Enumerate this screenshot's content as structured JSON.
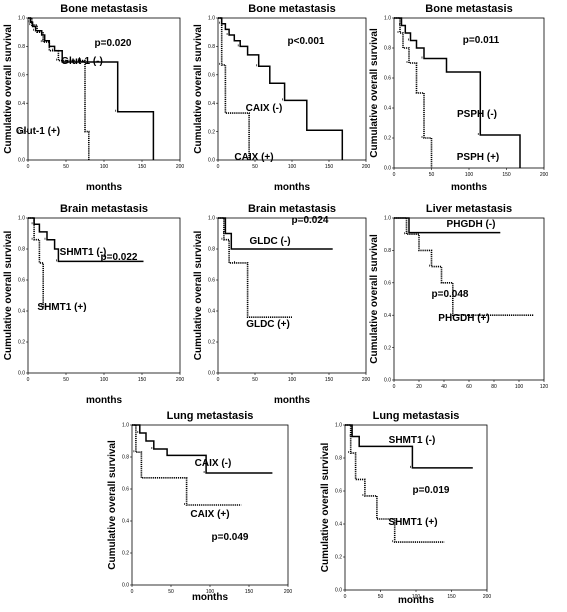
{
  "figure": {
    "colors": {
      "line": "#000000",
      "green_tint": "#3a6b3a"
    }
  },
  "chart_data": [
    {
      "type": "line",
      "title": "Bone metastasis",
      "xlabel": "months",
      "ylabel": "Cumulative overall survival",
      "xlim": [
        0,
        200
      ],
      "ylim": [
        0,
        1
      ],
      "x_ticks": [
        "0",
        "50",
        "100",
        "150",
        "200"
      ],
      "y_ticks": [
        "0.0",
        "0.2",
        "0.4",
        "0.6",
        "0.8",
        "1.0"
      ],
      "series": [
        {
          "name": "Glut-1 (-)",
          "style": "solid",
          "x": [
            0,
            3,
            6,
            10,
            18,
            22,
            28,
            35,
            45,
            118,
            165
          ],
          "y": [
            1.0,
            0.97,
            0.94,
            0.91,
            0.88,
            0.84,
            0.8,
            0.77,
            0.69,
            0.34,
            0.0
          ]
        },
        {
          "name": "Glut-1 (+)",
          "style": "dotted",
          "x": [
            0,
            5,
            12,
            20,
            28,
            40,
            75,
            80
          ],
          "y": [
            1.0,
            0.95,
            0.9,
            0.83,
            0.77,
            0.7,
            0.2,
            0.0
          ]
        }
      ],
      "annotations": [
        {
          "text": "p=0.020"
        },
        {
          "text": "Glut-1 (-)"
        },
        {
          "text": "Glut-1 (+)"
        }
      ]
    },
    {
      "type": "line",
      "title": "Bone metastasis",
      "xlabel": "months",
      "ylabel": "Cumulative overall survival",
      "xlim": [
        0,
        200
      ],
      "ylim": [
        0,
        1
      ],
      "x_ticks": [
        "0",
        "50",
        "100",
        "150",
        "200"
      ],
      "y_ticks": [
        "0.0",
        "0.2",
        "0.4",
        "0.6",
        "0.8",
        "1.0"
      ],
      "series": [
        {
          "name": "CAIX (-)",
          "style": "solid",
          "x": [
            0,
            5,
            10,
            15,
            22,
            30,
            40,
            55,
            70,
            90,
            120,
            168
          ],
          "y": [
            1.0,
            0.96,
            0.92,
            0.88,
            0.84,
            0.8,
            0.74,
            0.66,
            0.54,
            0.42,
            0.21,
            0.0
          ]
        },
        {
          "name": "CAIX (+)",
          "style": "dotted",
          "x": [
            0,
            5,
            10,
            42
          ],
          "y": [
            1.0,
            0.67,
            0.33,
            0.0
          ]
        }
      ],
      "annotations": [
        {
          "text": "p<0.001"
        },
        {
          "text": "CAIX (-)"
        },
        {
          "text": "CAIX (+)"
        }
      ]
    },
    {
      "type": "line",
      "title": "Bone metastasis",
      "xlabel": "months",
      "ylabel": "Cumulative overall survival",
      "xlim": [
        0,
        200
      ],
      "ylim": [
        0,
        1
      ],
      "x_ticks": [
        "0",
        "50",
        "100",
        "150",
        "200"
      ],
      "y_ticks": [
        "0.0",
        "0.2",
        "0.4",
        "0.6",
        "0.8",
        "1.0"
      ],
      "series": [
        {
          "name": "PSPH (-)",
          "style": "solid",
          "x": [
            0,
            10,
            15,
            22,
            30,
            40,
            70,
            115,
            168
          ],
          "y": [
            1.0,
            0.95,
            0.9,
            0.85,
            0.8,
            0.73,
            0.64,
            0.22,
            0.0
          ]
        },
        {
          "name": "PSPH (+)",
          "style": "dotted",
          "x": [
            0,
            8,
            12,
            20,
            30,
            40,
            50
          ],
          "y": [
            1.0,
            0.9,
            0.8,
            0.7,
            0.5,
            0.2,
            0.0
          ]
        }
      ],
      "annotations": [
        {
          "text": "p=0.011"
        },
        {
          "text": "PSPH (-)"
        },
        {
          "text": "PSPH (+)"
        }
      ]
    },
    {
      "type": "line",
      "title": "Brain metastasis",
      "xlabel": "months",
      "ylabel": "Cumulative overall survival",
      "xlim": [
        0,
        200
      ],
      "ylim": [
        0,
        1
      ],
      "x_ticks": [
        "0",
        "50",
        "100",
        "150",
        "200"
      ],
      "y_ticks": [
        "0.0",
        "0.2",
        "0.4",
        "0.6",
        "0.8",
        "1.0"
      ],
      "series": [
        {
          "name": "SHMT1 (-)",
          "style": "solid",
          "x": [
            0,
            8,
            15,
            25,
            35,
            40,
            152
          ],
          "y": [
            1.0,
            0.96,
            0.91,
            0.86,
            0.8,
            0.72,
            0.72
          ]
        },
        {
          "name": "SHMT1 (+)",
          "style": "dotted",
          "x": [
            0,
            8,
            15,
            20,
            25
          ],
          "y": [
            1.0,
            0.86,
            0.71,
            0.43,
            0.43
          ]
        }
      ],
      "annotations": [
        {
          "text": "p=0.022"
        },
        {
          "text": "SHMT1 (-)"
        },
        {
          "text": "SHMT1 (+)"
        }
      ]
    },
    {
      "type": "line",
      "title": "Brain metastasis",
      "xlabel": "months",
      "ylabel": "Cumulative overall survival",
      "xlim": [
        0,
        200
      ],
      "ylim": [
        0,
        1
      ],
      "x_ticks": [
        "0",
        "50",
        "100",
        "150",
        "200"
      ],
      "y_ticks": [
        "0.0",
        "0.2",
        "0.4",
        "0.6",
        "0.8",
        "1.0"
      ],
      "series": [
        {
          "name": "GLDC (-)",
          "style": "solid",
          "x": [
            0,
            10,
            18,
            155
          ],
          "y": [
            1.0,
            0.9,
            0.8,
            0.8
          ]
        },
        {
          "name": "GLDC (+)",
          "style": "dotted",
          "x": [
            0,
            8,
            15,
            25,
            40,
            100
          ],
          "y": [
            1.0,
            0.86,
            0.71,
            0.71,
            0.36,
            0.36
          ]
        }
      ],
      "annotations": [
        {
          "text": "p=0.024"
        },
        {
          "text": "GLDC (-)"
        },
        {
          "text": "GLDC (+)"
        }
      ]
    },
    {
      "type": "line",
      "title": "Liver metastasis",
      "xlabel": "",
      "ylabel": "Cumulative overall survival",
      "xlim": [
        0,
        120
      ],
      "ylim": [
        0,
        1
      ],
      "x_ticks": [
        "0",
        "20",
        "40",
        "60",
        "80",
        "100",
        "120"
      ],
      "y_ticks": [
        "0.0",
        "0.2",
        "0.4",
        "0.6",
        "0.8",
        "1.0"
      ],
      "series": [
        {
          "name": "PHGDH (-)",
          "style": "solid",
          "x": [
            0,
            12,
            85
          ],
          "y": [
            1.0,
            0.91,
            0.91
          ]
        },
        {
          "name": "PHGDH (+)",
          "style": "dotted",
          "x": [
            0,
            10,
            20,
            30,
            38,
            47,
            112
          ],
          "y": [
            1.0,
            0.9,
            0.8,
            0.7,
            0.6,
            0.4,
            0.4
          ]
        }
      ],
      "annotations": [
        {
          "text": "p=0.048"
        },
        {
          "text": "PHGDH (-)"
        },
        {
          "text": "PHGDH (+)"
        }
      ]
    },
    {
      "type": "line",
      "title": "Lung metastasis",
      "xlabel": "months",
      "ylabel": "Cumulative overall survival",
      "xlim": [
        0,
        200
      ],
      "ylim": [
        0,
        1
      ],
      "x_ticks": [
        "0",
        "50",
        "100",
        "150",
        "200"
      ],
      "y_ticks": [
        "0.0",
        "0.2",
        "0.4",
        "0.6",
        "0.8",
        "1.0"
      ],
      "series": [
        {
          "name": "CAIX (-)",
          "style": "solid",
          "x": [
            0,
            10,
            18,
            28,
            45,
            95,
            180
          ],
          "y": [
            1.0,
            0.95,
            0.9,
            0.85,
            0.81,
            0.7,
            0.7
          ]
        },
        {
          "name": "CAIX (+)",
          "style": "dotted",
          "x": [
            0,
            5,
            12,
            70,
            140
          ],
          "y": [
            1.0,
            0.83,
            0.67,
            0.5,
            0.5
          ]
        }
      ],
      "annotations": [
        {
          "text": "p=0.049"
        },
        {
          "text": "CAIX (-)"
        },
        {
          "text": "CAIX (+)"
        }
      ]
    },
    {
      "type": "line",
      "title": "Lung metastasis",
      "xlabel": "months",
      "ylabel": "Cumulative overall survival",
      "xlim": [
        0,
        200
      ],
      "ylim": [
        0,
        1
      ],
      "x_ticks": [
        "0",
        "50",
        "100",
        "150",
        "200"
      ],
      "y_ticks": [
        "0.0",
        "0.2",
        "0.4",
        "0.6",
        "0.8",
        "1.0"
      ],
      "series": [
        {
          "name": "SHMT1 (-)",
          "style": "solid",
          "x": [
            0,
            10,
            20,
            95,
            180
          ],
          "y": [
            1.0,
            0.93,
            0.87,
            0.74,
            0.74
          ]
        },
        {
          "name": "SHMT1 (+)",
          "style": "dotted",
          "x": [
            0,
            8,
            15,
            28,
            45,
            70,
            140
          ],
          "y": [
            1.0,
            0.83,
            0.67,
            0.57,
            0.43,
            0.29,
            0.29
          ]
        }
      ],
      "annotations": [
        {
          "text": "p=0.019"
        },
        {
          "text": "SHMT1 (-)"
        },
        {
          "text": "SHMT1 (+)"
        }
      ]
    }
  ]
}
